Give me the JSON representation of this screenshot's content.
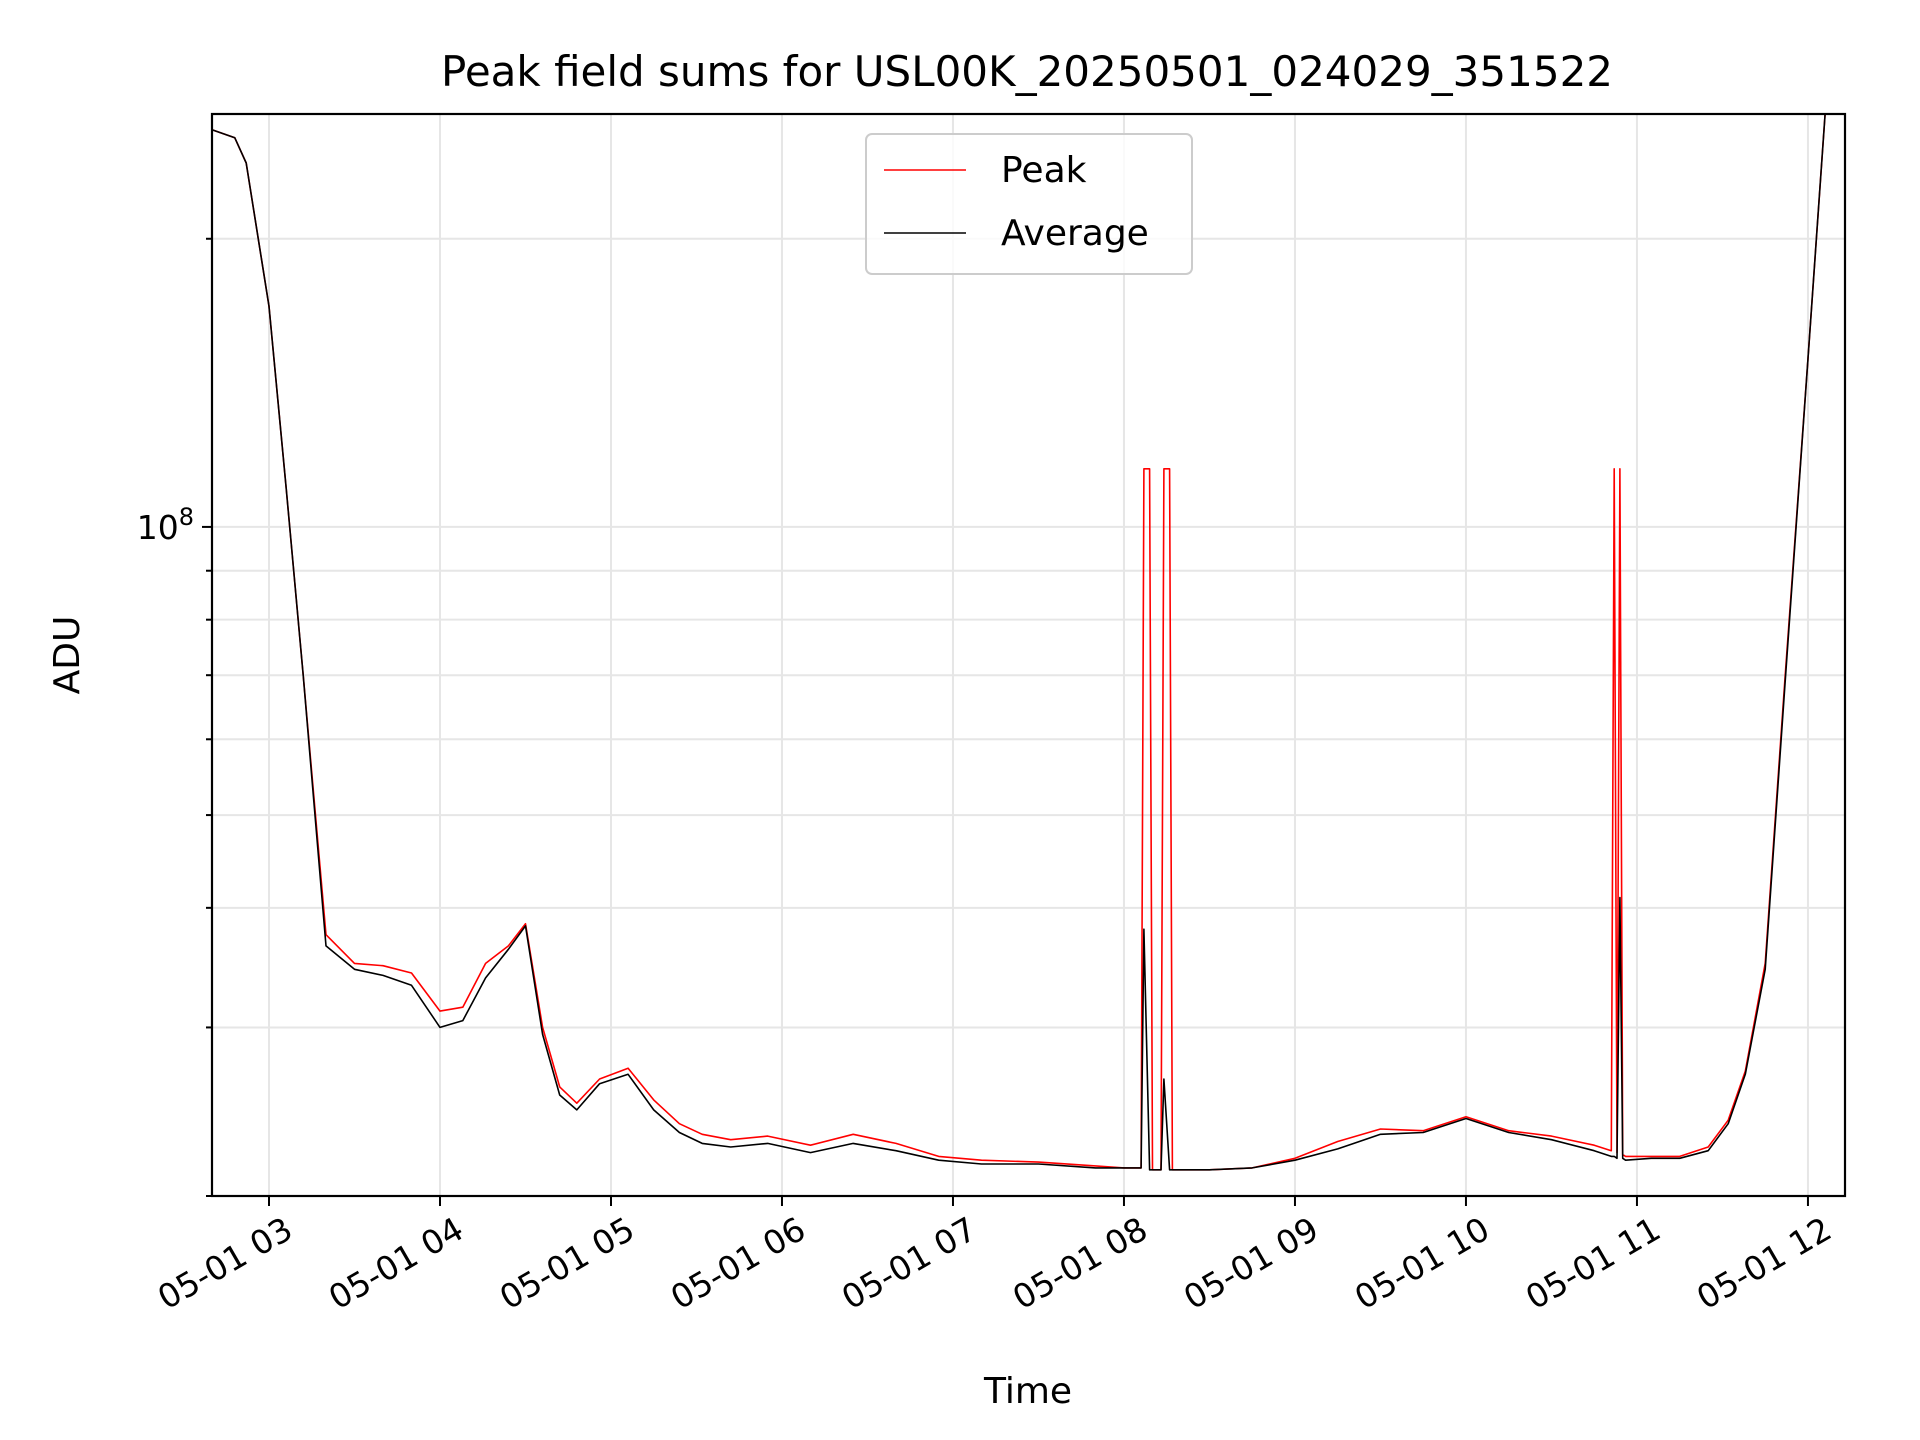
{
  "chart_data": {
    "type": "line",
    "title": "Peak field sums for USL00K_20250501_024029_351522",
    "xlabel": "Time",
    "ylabel": "ADU",
    "y_scale": "log",
    "ylim": [
      20000000,
      270000000
    ],
    "xlim": [
      "2025-05-01 02:40",
      "2025-05-01 12:13"
    ],
    "grid": true,
    "legend_placement": "upper center",
    "x_ticks": [
      {
        "value": "2025-05-01 03:00",
        "label": "05-01 03"
      },
      {
        "value": "2025-05-01 04:00",
        "label": "05-01 04"
      },
      {
        "value": "2025-05-01 05:00",
        "label": "05-01 05"
      },
      {
        "value": "2025-05-01 06:00",
        "label": "05-01 06"
      },
      {
        "value": "2025-05-01 07:00",
        "label": "05-01 07"
      },
      {
        "value": "2025-05-01 08:00",
        "label": "05-01 08"
      },
      {
        "value": "2025-05-01 09:00",
        "label": "05-01 09"
      },
      {
        "value": "2025-05-01 10:00",
        "label": "05-01 10"
      },
      {
        "value": "2025-05-01 11:00",
        "label": "05-01 11"
      },
      {
        "value": "2025-05-01 12:00",
        "label": "05-01 12"
      }
    ],
    "y_major_tick": {
      "value": 100000000,
      "label_base": "10",
      "label_exp": "8"
    },
    "series": [
      {
        "name": "Peak",
        "color": "#ff0000",
        "x": [
          "2025-05-01 02:40",
          "2025-05-01 02:48",
          "2025-05-01 02:52",
          "2025-05-01 03:00",
          "2025-05-01 03:06",
          "2025-05-01 03:12",
          "2025-05-01 03:20",
          "2025-05-01 03:30",
          "2025-05-01 03:40",
          "2025-05-01 03:50",
          "2025-05-01 04:00",
          "2025-05-01 04:08",
          "2025-05-01 04:16",
          "2025-05-01 04:24",
          "2025-05-01 04:30",
          "2025-05-01 04:36",
          "2025-05-01 04:42",
          "2025-05-01 04:48",
          "2025-05-01 04:56",
          "2025-05-01 05:06",
          "2025-05-01 05:15",
          "2025-05-01 05:24",
          "2025-05-01 05:32",
          "2025-05-01 05:42",
          "2025-05-01 05:55",
          "2025-05-01 06:10",
          "2025-05-01 06:25",
          "2025-05-01 06:40",
          "2025-05-01 06:55",
          "2025-05-01 07:10",
          "2025-05-01 07:30",
          "2025-05-01 07:50",
          "2025-05-01 08:00",
          "2025-05-01 08:06",
          "2025-05-01 08:07",
          "2025-05-01 08:09",
          "2025-05-01 08:10",
          "2025-05-01 08:13",
          "2025-05-01 08:14",
          "2025-05-01 08:16",
          "2025-05-01 08:17",
          "2025-05-01 08:30",
          "2025-05-01 08:45",
          "2025-05-01 09:00",
          "2025-05-01 09:15",
          "2025-05-01 09:30",
          "2025-05-01 09:45",
          "2025-05-01 10:00",
          "2025-05-01 10:15",
          "2025-05-01 10:30",
          "2025-05-01 10:45",
          "2025-05-01 10:51",
          "2025-05-01 10:52",
          "2025-05-01 10:53",
          "2025-05-01 10:54",
          "2025-05-01 10:55",
          "2025-05-01 10:56",
          "2025-05-01 11:05",
          "2025-05-01 11:15",
          "2025-05-01 11:25",
          "2025-05-01 11:32",
          "2025-05-01 11:38",
          "2025-05-01 11:45",
          "2025-05-01 11:52",
          "2025-05-01 12:00",
          "2025-05-01 12:06"
        ],
        "y": [
          260000000,
          255000000,
          240000000,
          170000000,
          110000000,
          70000000,
          37500000,
          35000000,
          34800000,
          34200000,
          31200000,
          31500000,
          35000000,
          36500000,
          38500000,
          30000000,
          26000000,
          25000000,
          26500000,
          27200000,
          25200000,
          23800000,
          23200000,
          22900000,
          23100000,
          22600000,
          23200000,
          22700000,
          22000000,
          21800000,
          21700000,
          21500000,
          21400000,
          21400000,
          115000000,
          115000000,
          21300000,
          21300000,
          115000000,
          115000000,
          21300000,
          21300000,
          21400000,
          21900000,
          22800000,
          23500000,
          23400000,
          24200000,
          23400000,
          23100000,
          22600000,
          22300000,
          115000000,
          22200000,
          115000000,
          22100000,
          22000000,
          22000000,
          22000000,
          22500000,
          24000000,
          27000000,
          35000000,
          70000000,
          150000000,
          270000000
        ]
      },
      {
        "name": "Average",
        "color": "#000000",
        "x": [
          "2025-05-01 02:40",
          "2025-05-01 02:48",
          "2025-05-01 02:52",
          "2025-05-01 03:00",
          "2025-05-01 03:06",
          "2025-05-01 03:12",
          "2025-05-01 03:20",
          "2025-05-01 03:30",
          "2025-05-01 03:40",
          "2025-05-01 03:50",
          "2025-05-01 04:00",
          "2025-05-01 04:08",
          "2025-05-01 04:16",
          "2025-05-01 04:24",
          "2025-05-01 04:30",
          "2025-05-01 04:36",
          "2025-05-01 04:42",
          "2025-05-01 04:48",
          "2025-05-01 04:56",
          "2025-05-01 05:06",
          "2025-05-01 05:15",
          "2025-05-01 05:24",
          "2025-05-01 05:32",
          "2025-05-01 05:42",
          "2025-05-01 05:55",
          "2025-05-01 06:10",
          "2025-05-01 06:25",
          "2025-05-01 06:40",
          "2025-05-01 06:55",
          "2025-05-01 07:10",
          "2025-05-01 07:30",
          "2025-05-01 07:50",
          "2025-05-01 08:00",
          "2025-05-01 08:06",
          "2025-05-01 08:07",
          "2025-05-01 08:09",
          "2025-05-01 08:10",
          "2025-05-01 08:13",
          "2025-05-01 08:14",
          "2025-05-01 08:16",
          "2025-05-01 08:17",
          "2025-05-01 08:30",
          "2025-05-01 08:45",
          "2025-05-01 09:00",
          "2025-05-01 09:15",
          "2025-05-01 09:30",
          "2025-05-01 09:45",
          "2025-05-01 10:00",
          "2025-05-01 10:15",
          "2025-05-01 10:30",
          "2025-05-01 10:45",
          "2025-05-01 10:51",
          "2025-05-01 10:52",
          "2025-05-01 10:53",
          "2025-05-01 10:54",
          "2025-05-01 10:55",
          "2025-05-01 10:56",
          "2025-05-01 11:05",
          "2025-05-01 11:15",
          "2025-05-01 11:25",
          "2025-05-01 11:32",
          "2025-05-01 11:38",
          "2025-05-01 11:45",
          "2025-05-01 11:52",
          "2025-05-01 12:00",
          "2025-05-01 12:06"
        ],
        "y": [
          260000000,
          255000000,
          240000000,
          170000000,
          110000000,
          70000000,
          36500000,
          34500000,
          34000000,
          33200000,
          30000000,
          30500000,
          33800000,
          36200000,
          38300000,
          29500000,
          25500000,
          24600000,
          26200000,
          26800000,
          24600000,
          23300000,
          22700000,
          22500000,
          22700000,
          22200000,
          22700000,
          22300000,
          21800000,
          21600000,
          21600000,
          21400000,
          21400000,
          21400000,
          38000000,
          21300000,
          21300000,
          21300000,
          26500000,
          21300000,
          21300000,
          21300000,
          21400000,
          21800000,
          22400000,
          23200000,
          23300000,
          24100000,
          23300000,
          22900000,
          22300000,
          22000000,
          22000000,
          21900000,
          41000000,
          21900000,
          21800000,
          21900000,
          21900000,
          22300000,
          23800000,
          26800000,
          34500000,
          69000000,
          150000000,
          270000000
        ]
      }
    ]
  }
}
